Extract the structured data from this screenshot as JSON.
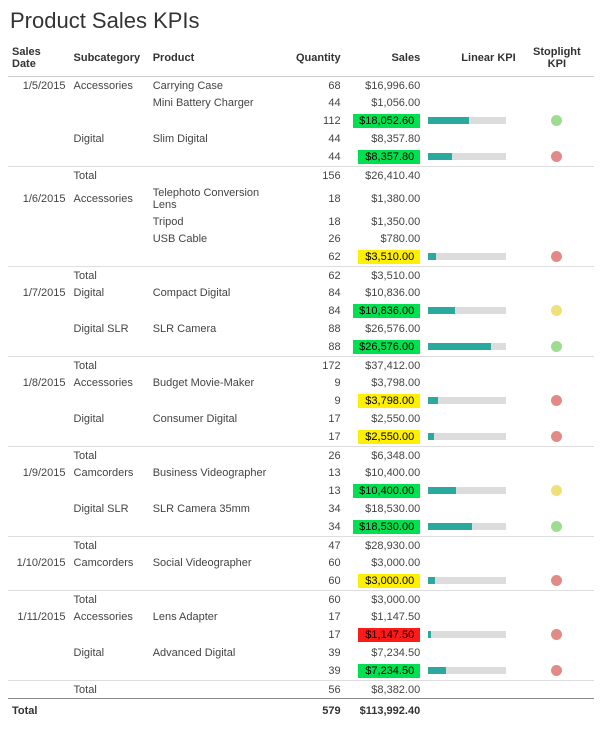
{
  "title": "Product Sales KPIs",
  "columns": [
    "Sales Date",
    "Subcategory",
    "Product",
    "Quantity",
    "Sales",
    "Linear KPI",
    "Stoplight KPI"
  ],
  "colors": {
    "green_fill": "#00e050",
    "yellow_fill": "#ffef00",
    "red_fill": "#ff1a1a",
    "bar_bg": "#dcdcdc",
    "bar_fill": "#2aa99e",
    "stop_green": "#9edd8f",
    "stop_yellow": "#f0e079",
    "stop_red": "#e38a86"
  },
  "grand_total": {
    "label": "Total",
    "quantity": "579",
    "sales": "$113,992.40"
  },
  "rows": [
    {
      "date": "1/5/2015",
      "sub": "Accessories",
      "prod": "Carrying Case",
      "qty": "68",
      "sales": "$16,996.60"
    },
    {
      "date": "",
      "sub": "",
      "prod": "Mini Battery Charger",
      "qty": "44",
      "sales": "$1,056.00"
    },
    {
      "date": "",
      "sub": "",
      "prod": "",
      "qty": "112",
      "sales": "$18,052.60",
      "pill": "green",
      "bar": 0.52,
      "stop": "green"
    },
    {
      "date": "",
      "sub": "Digital",
      "prod": "Slim Digital",
      "qty": "44",
      "sales": "$8,357.80"
    },
    {
      "date": "",
      "sub": "",
      "prod": "",
      "qty": "44",
      "sales": "$8,357.80",
      "pill": "green",
      "bar": 0.3,
      "stop": "red"
    },
    {
      "date": "",
      "sub": "Total",
      "prod": "",
      "qty": "156",
      "sales": "$26,410.40",
      "total": true
    },
    {
      "date": "1/6/2015",
      "sub": "Accessories",
      "prod": "Telephoto Conversion Lens",
      "qty": "18",
      "sales": "$1,380.00"
    },
    {
      "date": "",
      "sub": "",
      "prod": "Tripod",
      "qty": "18",
      "sales": "$1,350.00"
    },
    {
      "date": "",
      "sub": "",
      "prod": "USB Cable",
      "qty": "26",
      "sales": "$780.00"
    },
    {
      "date": "",
      "sub": "",
      "prod": "",
      "qty": "62",
      "sales": "$3,510.00",
      "pill": "yellow",
      "bar": 0.1,
      "stop": "red"
    },
    {
      "date": "",
      "sub": "Total",
      "prod": "",
      "qty": "62",
      "sales": "$3,510.00",
      "total": true
    },
    {
      "date": "1/7/2015",
      "sub": "Digital",
      "prod": "Compact Digital",
      "qty": "84",
      "sales": "$10,836.00"
    },
    {
      "date": "",
      "sub": "",
      "prod": "",
      "qty": "84",
      "sales": "$10,836.00",
      "pill": "green",
      "bar": 0.34,
      "stop": "yellow"
    },
    {
      "date": "",
      "sub": "Digital SLR",
      "prod": "SLR Camera",
      "qty": "88",
      "sales": "$26,576.00"
    },
    {
      "date": "",
      "sub": "",
      "prod": "",
      "qty": "88",
      "sales": "$26,576.00",
      "pill": "green",
      "bar": 0.8,
      "stop": "green"
    },
    {
      "date": "",
      "sub": "Total",
      "prod": "",
      "qty": "172",
      "sales": "$37,412.00",
      "total": true
    },
    {
      "date": "1/8/2015",
      "sub": "Accessories",
      "prod": "Budget Movie-Maker",
      "qty": "9",
      "sales": "$3,798.00"
    },
    {
      "date": "",
      "sub": "",
      "prod": "",
      "qty": "9",
      "sales": "$3,798.00",
      "pill": "yellow",
      "bar": 0.12,
      "stop": "red"
    },
    {
      "date": "",
      "sub": "Digital",
      "prod": "Consumer Digital",
      "qty": "17",
      "sales": "$2,550.00"
    },
    {
      "date": "",
      "sub": "",
      "prod": "",
      "qty": "17",
      "sales": "$2,550.00",
      "pill": "yellow",
      "bar": 0.08,
      "stop": "red"
    },
    {
      "date": "",
      "sub": "Total",
      "prod": "",
      "qty": "26",
      "sales": "$6,348.00",
      "total": true
    },
    {
      "date": "1/9/2015",
      "sub": "Camcorders",
      "prod": "Business Videographer",
      "qty": "13",
      "sales": "$10,400.00"
    },
    {
      "date": "",
      "sub": "",
      "prod": "",
      "qty": "13",
      "sales": "$10,400.00",
      "pill": "green",
      "bar": 0.35,
      "stop": "yellow"
    },
    {
      "date": "",
      "sub": "Digital SLR",
      "prod": "SLR Camera 35mm",
      "qty": "34",
      "sales": "$18,530.00"
    },
    {
      "date": "",
      "sub": "",
      "prod": "",
      "qty": "34",
      "sales": "$18,530.00",
      "pill": "green",
      "bar": 0.56,
      "stop": "green"
    },
    {
      "date": "",
      "sub": "Total",
      "prod": "",
      "qty": "47",
      "sales": "$28,930.00",
      "total": true
    },
    {
      "date": "1/10/2015",
      "sub": "Camcorders",
      "prod": "Social Videographer",
      "qty": "60",
      "sales": "$3,000.00"
    },
    {
      "date": "",
      "sub": "",
      "prod": "",
      "qty": "60",
      "sales": "$3,000.00",
      "pill": "yellow",
      "bar": 0.09,
      "stop": "red"
    },
    {
      "date": "",
      "sub": "Total",
      "prod": "",
      "qty": "60",
      "sales": "$3,000.00",
      "total": true
    },
    {
      "date": "1/11/2015",
      "sub": "Accessories",
      "prod": "Lens Adapter",
      "qty": "17",
      "sales": "$1,147.50"
    },
    {
      "date": "",
      "sub": "",
      "prod": "",
      "qty": "17",
      "sales": "$1,147.50",
      "pill": "red",
      "bar": 0.04,
      "stop": "red"
    },
    {
      "date": "",
      "sub": "Digital",
      "prod": "Advanced Digital",
      "qty": "39",
      "sales": "$7,234.50"
    },
    {
      "date": "",
      "sub": "",
      "prod": "",
      "qty": "39",
      "sales": "$7,234.50",
      "pill": "green",
      "bar": 0.23,
      "stop": "red"
    },
    {
      "date": "",
      "sub": "Total",
      "prod": "",
      "qty": "56",
      "sales": "$8,382.00",
      "total": true
    }
  ]
}
